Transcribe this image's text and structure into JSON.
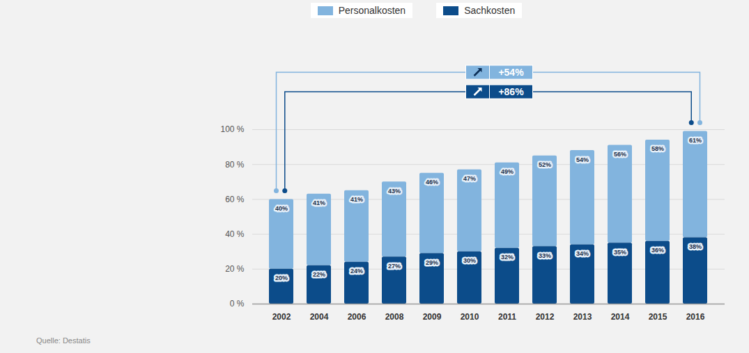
{
  "chart_data": {
    "type": "bar",
    "stacked": true,
    "data_labels": true,
    "grid": true,
    "legend": "top",
    "categories": [
      "2002",
      "2004",
      "2006",
      "2008",
      "2009",
      "2010",
      "2011",
      "2012",
      "2013",
      "2014",
      "2015",
      "2016"
    ],
    "series": [
      {
        "name": "Personalkosten",
        "color": "#82b4de",
        "values": [
          40,
          41,
          41,
          43,
          46,
          47,
          49,
          52,
          54,
          56,
          58,
          61
        ],
        "value_labels": [
          "40%",
          "41%",
          "41%",
          "43%",
          "46%",
          "47%",
          "49%",
          "52%",
          "54%",
          "56%",
          "58%",
          "61%"
        ]
      },
      {
        "name": "Sachkosten",
        "color": "#0c4c8a",
        "values": [
          20,
          22,
          24,
          27,
          29,
          30,
          32,
          33,
          34,
          35,
          36,
          38
        ],
        "value_labels": [
          "20%",
          "22%",
          "24%",
          "27%",
          "29%",
          "30%",
          "32%",
          "33%",
          "34%",
          "35%",
          "36%",
          "38%"
        ]
      }
    ],
    "ylim": [
      0,
      100
    ],
    "yticks": [
      {
        "value": 0,
        "label": "0 %"
      },
      {
        "value": 20,
        "label": "20 %"
      },
      {
        "value": 40,
        "label": "40 %"
      },
      {
        "value": 60,
        "label": "60 %"
      },
      {
        "value": 80,
        "label": "80 %"
      },
      {
        "value": 100,
        "label": "100 %"
      }
    ],
    "annotations": [
      {
        "text": "+54%",
        "series": "Personalkosten"
      },
      {
        "text": "+86%",
        "series": "Sachkosten"
      }
    ],
    "source": "Quelle: Destatis"
  }
}
